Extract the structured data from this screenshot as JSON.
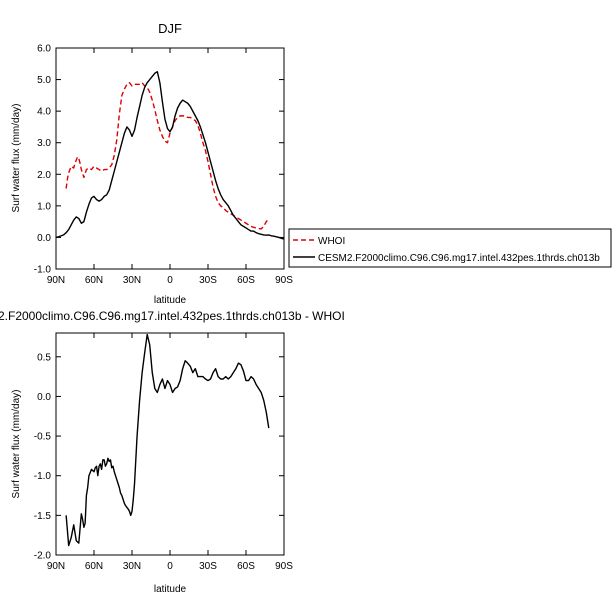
{
  "chart_data": [
    {
      "type": "line",
      "title": "DJF",
      "xlabel": "latitude",
      "ylabel": "Surf water flux (mm/day)",
      "xlim": [
        90,
        -90
      ],
      "ylim": [
        -1.0,
        6.0
      ],
      "xtick_labels": [
        "90N",
        "60N",
        "30N",
        "0",
        "30S",
        "60S",
        "90S"
      ],
      "xtick_values": [
        90,
        60,
        30,
        0,
        -30,
        -60,
        -90
      ],
      "ytick_labels": [
        "-1.0",
        "0.0",
        "1.0",
        "2.0",
        "3.0",
        "4.0",
        "5.0",
        "6.0"
      ],
      "ytick_values": [
        -1,
        0,
        1,
        2,
        3,
        4,
        5,
        6
      ],
      "legend": {
        "placement": "right"
      },
      "series": [
        {
          "name": "WHOI",
          "color": "#dd0000",
          "dash": "dashed",
          "x": [
            82,
            81,
            80,
            78,
            76,
            75,
            74,
            73,
            72,
            71,
            70,
            68,
            66,
            64,
            62,
            60,
            58,
            56,
            54,
            52,
            50,
            48,
            46,
            44,
            42,
            40,
            38,
            36,
            34,
            33,
            32,
            31,
            30,
            28,
            26,
            24,
            22,
            20,
            18,
            16,
            14,
            12,
            10,
            8,
            6,
            4,
            2,
            0,
            -2,
            -4,
            -6,
            -8,
            -10,
            -12,
            -14,
            -16,
            -18,
            -20,
            -22,
            -24,
            -26,
            -28,
            -30,
            -32,
            -34,
            -36,
            -38,
            -40,
            -42,
            -44,
            -46,
            -48,
            -50,
            -52,
            -54,
            -56,
            -58,
            -60,
            -62,
            -64,
            -66,
            -68,
            -70,
            -72,
            -74,
            -76,
            -78
          ],
          "y": [
            1.55,
            1.85,
            2.05,
            2.25,
            2.2,
            2.35,
            2.45,
            2.55,
            2.5,
            2.35,
            2.15,
            1.9,
            2.15,
            2.2,
            2.15,
            2.25,
            2.2,
            2.15,
            2.1,
            2.15,
            2.15,
            2.2,
            2.3,
            2.6,
            3.1,
            3.9,
            4.5,
            4.7,
            4.85,
            4.85,
            4.9,
            4.85,
            4.8,
            4.85,
            4.85,
            4.85,
            4.9,
            4.8,
            4.75,
            4.6,
            4.35,
            4.05,
            3.7,
            3.4,
            3.2,
            3.05,
            3.0,
            3.3,
            3.5,
            3.7,
            3.8,
            3.85,
            3.85,
            3.85,
            3.8,
            3.8,
            3.75,
            3.7,
            3.55,
            3.3,
            3.0,
            2.75,
            2.4,
            2.0,
            1.6,
            1.3,
            1.1,
            1.0,
            0.95,
            0.85,
            0.8,
            0.75,
            0.7,
            0.65,
            0.6,
            0.55,
            0.5,
            0.45,
            0.4,
            0.35,
            0.32,
            0.3,
            0.28,
            0.27,
            0.35,
            0.5,
            0.6
          ]
        },
        {
          "name": "CESM2.F2000climo.C96.C96.mg17.intel.432pes.1thrds.ch013b",
          "color": "#000000",
          "dash": "solid",
          "x": [
            90,
            88,
            86,
            84,
            82,
            80,
            78,
            76,
            74,
            72,
            70,
            68,
            66,
            64,
            62,
            60,
            58,
            56,
            54,
            52,
            50,
            48,
            46,
            44,
            42,
            40,
            38,
            36,
            34,
            32,
            30,
            28,
            26,
            24,
            22,
            20,
            18,
            16,
            14,
            12,
            10,
            8,
            6,
            4,
            2,
            0,
            -2,
            -4,
            -6,
            -8,
            -10,
            -12,
            -14,
            -16,
            -18,
            -20,
            -22,
            -24,
            -26,
            -28,
            -30,
            -32,
            -34,
            -36,
            -38,
            -40,
            -42,
            -44,
            -46,
            -48,
            -50,
            -52,
            -54,
            -56,
            -58,
            -60,
            -62,
            -64,
            -66,
            -68,
            -70,
            -72,
            -74,
            -76,
            -78,
            -80,
            -82,
            -84,
            -86,
            -88,
            -90
          ],
          "y": [
            0.0,
            0.02,
            0.05,
            0.08,
            0.15,
            0.25,
            0.4,
            0.55,
            0.65,
            0.6,
            0.45,
            0.5,
            0.8,
            1.05,
            1.25,
            1.3,
            1.2,
            1.15,
            1.2,
            1.3,
            1.35,
            1.5,
            1.8,
            2.1,
            2.4,
            2.7,
            3.0,
            3.3,
            3.5,
            3.4,
            3.2,
            3.4,
            3.8,
            4.15,
            4.5,
            4.75,
            4.9,
            5.0,
            5.1,
            5.2,
            5.25,
            4.9,
            4.3,
            3.75,
            3.45,
            3.35,
            3.5,
            3.85,
            4.1,
            4.25,
            4.35,
            4.3,
            4.25,
            4.15,
            4.0,
            3.85,
            3.7,
            3.5,
            3.25,
            3.0,
            2.7,
            2.4,
            2.1,
            1.8,
            1.55,
            1.35,
            1.2,
            1.1,
            1.0,
            0.85,
            0.7,
            0.6,
            0.5,
            0.4,
            0.35,
            0.3,
            0.25,
            0.2,
            0.2,
            0.15,
            0.12,
            0.1,
            0.08,
            0.07,
            0.08,
            0.05,
            0.04,
            0.02,
            0.0,
            -0.03,
            -0.05
          ]
        }
      ]
    },
    {
      "type": "line",
      "title": "2.F2000climo.C96.C96.mg17.intel.432pes.1thrds.ch013b - WHOI",
      "xlabel": "latitude",
      "ylabel": "Surf water flux (mm/day)",
      "xlim": [
        90,
        -90
      ],
      "ylim": [
        -2.0,
        0.8
      ],
      "xtick_labels": [
        "90N",
        "60N",
        "30N",
        "0",
        "30S",
        "60S",
        "90S"
      ],
      "xtick_values": [
        90,
        60,
        30,
        0,
        -30,
        -60,
        -90
      ],
      "ytick_labels": [
        "-2.0",
        "-1.5",
        "-1.0",
        "-0.5",
        "0.0",
        "0.5"
      ],
      "ytick_values": [
        -2.0,
        -1.5,
        -1.0,
        -0.5,
        0.0,
        0.5
      ],
      "series": [
        {
          "color": "#000000",
          "x": [
            82,
            80,
            78,
            76,
            74,
            72,
            70,
            69,
            68,
            67,
            66,
            65,
            64,
            62,
            60,
            59,
            58,
            57,
            56,
            55,
            54,
            53,
            52,
            51,
            50,
            49,
            48,
            47,
            46,
            45,
            44,
            43,
            42,
            41,
            40,
            39,
            38,
            37,
            36,
            35,
            34,
            33,
            32,
            31,
            30,
            29,
            28,
            26,
            24,
            22,
            20,
            18,
            16,
            14,
            12,
            10,
            8,
            6,
            4,
            2,
            0,
            -2,
            -4,
            -6,
            -8,
            -10,
            -12,
            -14,
            -16,
            -18,
            -20,
            -22,
            -24,
            -26,
            -28,
            -30,
            -32,
            -34,
            -36,
            -38,
            -40,
            -42,
            -44,
            -46,
            -48,
            -50,
            -52,
            -54,
            -56,
            -58,
            -60,
            -62,
            -64,
            -66,
            -68,
            -70,
            -72,
            -74,
            -76,
            -78
          ],
          "y": [
            -1.5,
            -1.88,
            -1.78,
            -1.62,
            -1.82,
            -1.85,
            -1.48,
            -1.55,
            -1.65,
            -1.6,
            -1.25,
            -1.15,
            -1.0,
            -0.92,
            -0.95,
            -0.9,
            -0.88,
            -1.0,
            -0.88,
            -0.85,
            -0.92,
            -0.8,
            -0.8,
            -0.88,
            -0.85,
            -0.78,
            -0.82,
            -0.8,
            -0.9,
            -0.88,
            -0.95,
            -1.0,
            -1.05,
            -1.1,
            -1.15,
            -1.22,
            -1.25,
            -1.3,
            -1.35,
            -1.38,
            -1.4,
            -1.42,
            -1.45,
            -1.5,
            -1.45,
            -1.3,
            -1.1,
            -0.5,
            -0.05,
            0.3,
            0.55,
            0.78,
            0.65,
            0.3,
            0.1,
            0.05,
            0.15,
            0.22,
            0.1,
            0.2,
            0.15,
            0.05,
            0.1,
            0.12,
            0.2,
            0.35,
            0.45,
            0.42,
            0.38,
            0.3,
            0.35,
            0.25,
            0.25,
            0.25,
            0.22,
            0.2,
            0.22,
            0.3,
            0.35,
            0.25,
            0.22,
            0.22,
            0.25,
            0.22,
            0.25,
            0.3,
            0.35,
            0.42,
            0.4,
            0.32,
            0.2,
            0.2,
            0.25,
            0.22,
            0.15,
            0.1,
            0.05,
            -0.05,
            -0.2,
            -0.4
          ]
        }
      ]
    }
  ]
}
